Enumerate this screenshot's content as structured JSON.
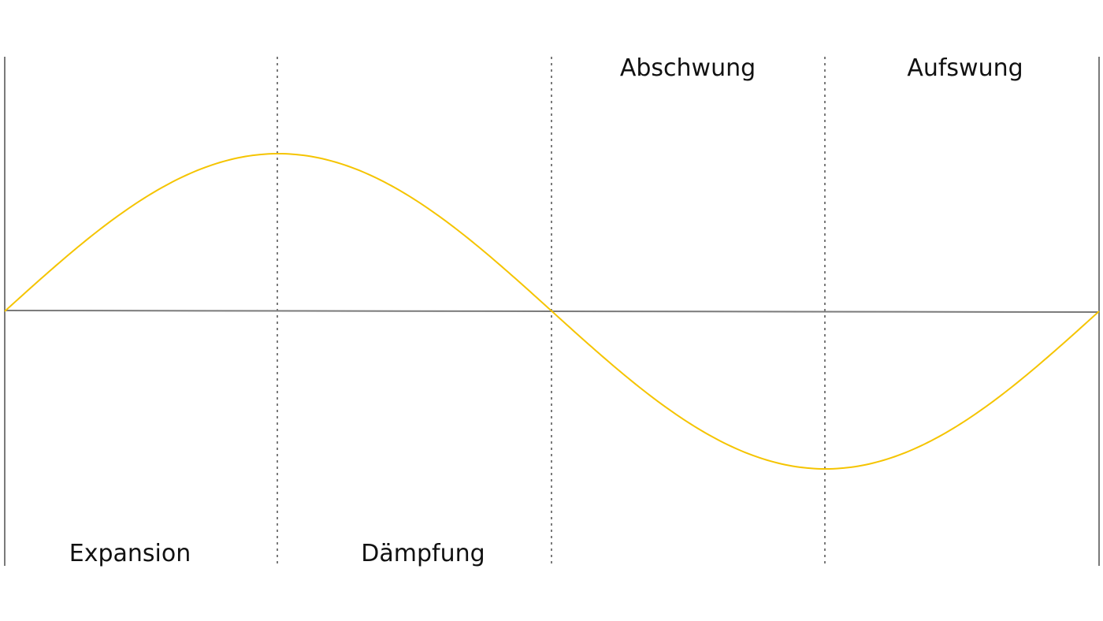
{
  "diagram": {
    "type": "business-cycle",
    "phases": [
      {
        "id": "expansion",
        "label": "Expansion",
        "label_row": "bottom"
      },
      {
        "id": "daempfung",
        "label": "Dämpfung",
        "label_row": "bottom"
      },
      {
        "id": "abschwung",
        "label": "Abschwung",
        "label_row": "top"
      },
      {
        "id": "aufswung",
        "label": "Aufswung",
        "label_row": "top"
      }
    ],
    "colors": {
      "curve": "#f5c400",
      "axis": "#7a7a7a",
      "divider": "#7a7a7a",
      "label": "#111111"
    }
  }
}
